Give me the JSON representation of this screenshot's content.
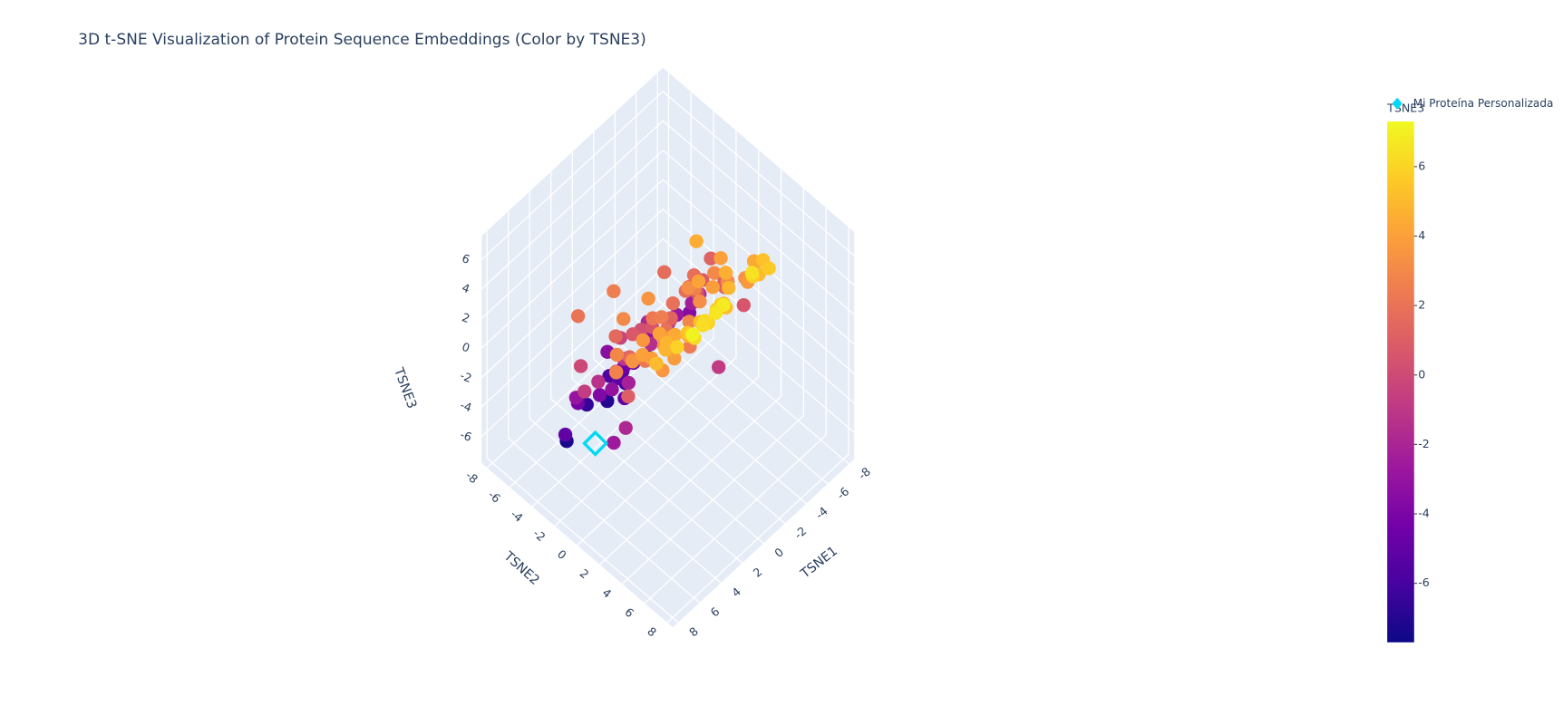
{
  "chart_data": {
    "type": "scatter3d",
    "title": "3D t-SNE Visualization of Protein Sequence Embeddings (Color by TSNE3)",
    "xlabel": "TSNE1",
    "ylabel": "TSNE2",
    "zlabel": "TSNE3",
    "xlim": [
      -8.5,
      8.5
    ],
    "ylim": [
      -8.5,
      8.5
    ],
    "zlim": [
      -7.8,
      7.6
    ],
    "xticks": [
      -8,
      -6,
      -4,
      -2,
      0,
      2,
      4,
      6,
      8
    ],
    "yticks": [
      -8,
      -6,
      -4,
      -2,
      0,
      2,
      4,
      6,
      8
    ],
    "zticks": [
      -6,
      -4,
      -2,
      0,
      2,
      4,
      6
    ],
    "grid": true,
    "legend": "top-right",
    "colorbar": {
      "title": "TSNE3",
      "cmin": -7.7,
      "cmax": 7.3,
      "ticks": [
        -6,
        -4,
        -2,
        0,
        2,
        4,
        6
      ],
      "colorscale": [
        "#0d0887",
        "#46039f",
        "#7201a8",
        "#9c179e",
        "#bd3786",
        "#d8576b",
        "#ed7953",
        "#fb9f3a",
        "#fdca26",
        "#f0f921"
      ]
    },
    "series": [
      {
        "marker": "circle",
        "x": [
          -3.2,
          1.5,
          4.8,
          -0.7,
          2.9,
          -5.1,
          0.4,
          3.6,
          -2.4,
          5.5,
          -4.3,
          1.1,
          -1.8,
          4.1,
          -3.9,
          2.2,
          0.9,
          -5.6,
          3.3,
          -0.2,
          5.0,
          -2.9,
          1.8,
          -4.7,
          3.9,
          -1.3,
          0.6,
          4.6,
          -3.5,
          2.5,
          -0.9,
          5.8,
          -2.1,
          1.4,
          -4.0,
          3.0,
          -1.6,
          0.2,
          4.3,
          -5.3,
          2.7,
          -3.0,
          1.0,
          5.2,
          -0.5,
          -2.6,
          3.8,
          -4.5,
          0.8,
          2.0,
          -1.1,
          4.9,
          -3.7,
          1.7,
          -5.0,
          3.4,
          -0.3,
          2.4,
          -2.2,
          5.4,
          -4.1,
          0.1,
          3.1,
          -1.9,
          4.5,
          -3.3,
          1.3,
          -0.8,
          2.8,
          -4.8,
          4.0,
          -2.0,
          0.5,
          3.7,
          -5.5,
          1.9,
          -1.4,
          4.4,
          -2.8,
          0.3,
          5.6,
          -3.6,
          2.1,
          -0.4,
          3.5,
          -4.4,
          1.6,
          -2.5,
          4.7,
          -1.0,
          2.6,
          -5.2,
          0.7,
          3.2,
          -3.1,
          5.1,
          -1.7,
          1.2,
          -4.2,
          2.3,
          -0.6,
          4.2,
          -2.7,
          0.0,
          3.9,
          -4.9,
          1.5,
          -1.5,
          5.3,
          -3.4,
          2.9,
          -0.1,
          4.0,
          -2.3,
          1.8,
          -5.4,
          3.6,
          -1.2,
          0.9,
          -3.8
        ],
        "y": [
          2.1,
          -3.4,
          0.8,
          4.5,
          -1.2,
          1.9,
          -5.0,
          3.3,
          -2.6,
          0.4,
          4.9,
          -0.7,
          2.8,
          -4.1,
          1.0,
          5.2,
          -3.0,
          -1.5,
          3.7,
          -5.4,
          0.2,
          2.4,
          -2.2,
          4.0,
          -0.9,
          1.6,
          5.5,
          -3.8,
          -1.0,
          3.0,
          -4.6,
          0.9,
          2.0,
          -2.9,
          4.3,
          -1.8,
          1.2,
          -5.2,
          3.6,
          0.0,
          -3.5,
          4.7,
          -0.4,
          1.4,
          -2.0,
          5.0,
          -4.4,
          2.6,
          0.6,
          -1.6,
          3.9,
          -3.1,
          1.8,
          -5.6,
          2.9,
          -0.2,
          4.4,
          -2.7,
          0.3,
          -4.0,
          3.2,
          -1.3,
          5.3,
          -3.6,
          1.1,
          -0.6,
          4.1,
          -4.8,
          2.3,
          0.5,
          -2.4,
          3.5,
          -1.9,
          5.7,
          -3.3,
          1.5,
          -5.1,
          2.7,
          -0.8,
          4.6,
          -2.1,
          0.7,
          3.8,
          -4.3,
          1.3,
          -1.1,
          5.1,
          -3.9,
          2.2,
          -0.5,
          4.2,
          -2.8,
          0.1,
          3.4,
          -4.7,
          1.7,
          -1.4,
          5.4,
          -3.2,
          2.5,
          -0.3,
          4.8,
          -2.5,
          1.9,
          -5.3,
          3.1,
          -1.7,
          0.4,
          4.0,
          -3.7,
          2.0,
          -4.5,
          3.6,
          -0.6,
          5.0,
          -2.3,
          1.2,
          -4.2,
          2.8,
          -1.0
        ],
        "z": [
          4.2,
          2.5,
          -1.8,
          5.1,
          3.0,
          0.6,
          -3.4,
          4.8,
          1.7,
          -2.6,
          5.6,
          3.5,
          -0.8,
          2.1,
          4.0,
          6.3,
          -4.9,
          1.2,
          3.8,
          -5.7,
          2.9,
          4.6,
          -1.1,
          5.3,
          0.3,
          3.2,
          6.8,
          -2.9,
          1.8,
          4.4,
          -6.1,
          2.7,
          3.9,
          -0.4,
          5.0,
          1.5,
          4.1,
          -7.0,
          3.6,
          0.9,
          -3.8,
          5.8,
          2.3,
          1.0,
          -1.5,
          6.5,
          -4.2,
          3.3,
          2.0,
          -2.2,
          4.7,
          -0.1,
          3.1,
          -6.5,
          4.3,
          1.4,
          5.5,
          -3.1,
          2.6,
          -5.0,
          3.7,
          0.5,
          6.1,
          -2.0,
          2.8,
          4.5,
          5.2,
          -5.4,
          3.4,
          1.1,
          -1.3,
          4.9,
          0.2,
          7.0,
          -3.6,
          2.4,
          -6.8,
          3.9,
          1.6,
          5.7,
          -0.7,
          3.0,
          4.6,
          -4.5,
          2.2,
          0.8,
          6.0,
          -3.3,
          4.0,
          1.9,
          5.4,
          -2.4,
          2.5,
          4.2,
          -5.9,
          3.5,
          -0.3,
          6.6,
          -2.8,
          3.8,
          1.3,
          5.9,
          -1.9,
          2.9,
          -7.3,
          4.4,
          0.7,
          3.2,
          5.0,
          -4.0,
          4.1,
          -5.2,
          4.8,
          1.8,
          6.2,
          -1.6,
          3.6,
          -4.7,
          2.4,
          0.4
        ]
      },
      {
        "name": "Mi Proteína Personalizada",
        "marker": "diamond-open",
        "color": "#00d9f5",
        "x": [
          6.6
        ],
        "y": [
          -0.2
        ],
        "z": [
          -2.3
        ]
      }
    ]
  }
}
